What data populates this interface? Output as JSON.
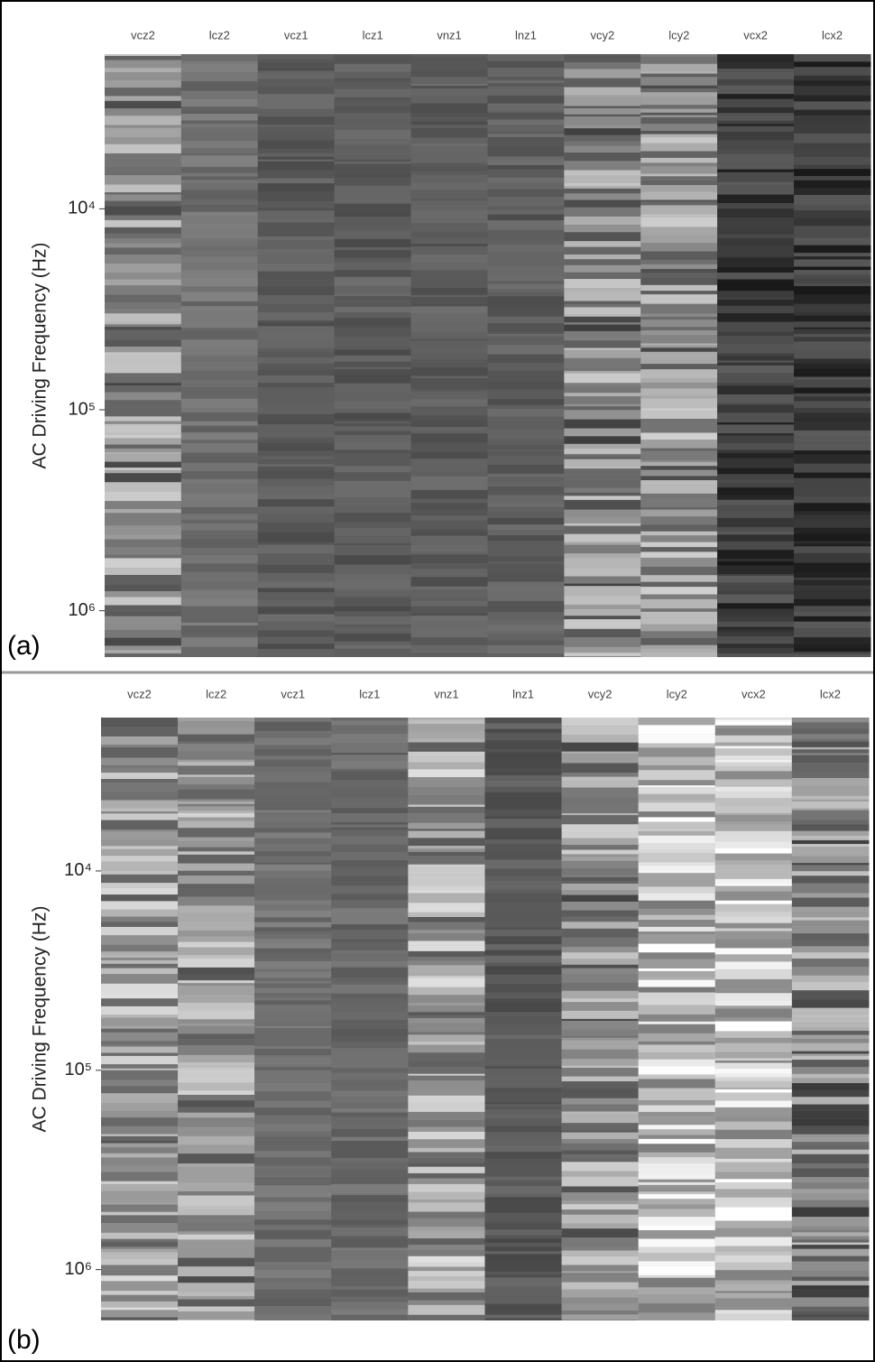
{
  "chart_data": [
    {
      "type": "stripe-image",
      "panel_label": "(a)",
      "ylabel": "AC Driving Frequency (Hz)",
      "columns": [
        "vcz2",
        "lcz2",
        "vcz1",
        "lcz1",
        "vnz1",
        "lnz1",
        "vcy2",
        "lcy2",
        "vcx2",
        "lcx2"
      ],
      "column_colors": [
        "#8a8a8a",
        "#707070",
        "#5c5c5c",
        "#5c5c5c",
        "#5e5e5e",
        "#5e5e5e",
        "#858585",
        "#8c8c8c",
        "#3c3c3c",
        "#3a3a3a"
      ],
      "log_y": true,
      "y_inverted": true,
      "ylim": [
        1700,
        1700000
      ],
      "yticks": [
        {
          "value": 10000,
          "label": "10⁴"
        },
        {
          "value": 100000,
          "label": "10⁵"
        },
        {
          "value": 1000000,
          "label": "10⁶"
        }
      ]
    },
    {
      "type": "stripe-image",
      "panel_label": "(b)",
      "ylabel": "AC Driving Frequency (Hz)",
      "columns": [
        "vcz2",
        "lcz2",
        "vcz1",
        "lcz1",
        "vnz1",
        "lnz1",
        "vcy2",
        "lcy2",
        "vcx2",
        "lcx2"
      ],
      "column_colors": [
        "#9a9a9a",
        "#8e8e8e",
        "#707070",
        "#6a6a6a",
        "#9c9c9c",
        "#5a5a5a",
        "#8a8a8a",
        "#bcbcbc",
        "#c4c4c4",
        "#7e7e7e"
      ],
      "log_y": true,
      "y_inverted": true,
      "ylim": [
        1700,
        1800000
      ],
      "yticks": [
        {
          "value": 10000,
          "label": "10⁴"
        },
        {
          "value": 100000,
          "label": "10⁵"
        },
        {
          "value": 1000000,
          "label": "10⁶"
        }
      ]
    }
  ]
}
